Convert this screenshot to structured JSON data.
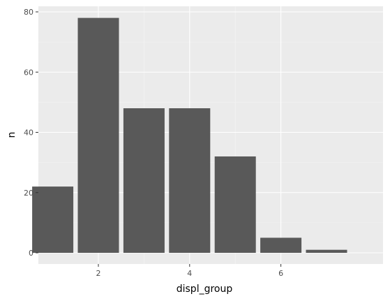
{
  "chart_data": {
    "type": "bar",
    "x": [
      1,
      2,
      3,
      4,
      5,
      6,
      7
    ],
    "values": [
      22,
      78,
      48,
      48,
      32,
      5,
      1
    ],
    "xlabel": "displ_group",
    "ylabel": "n",
    "xlim": [
      0.5,
      7.5
    ],
    "ylim": [
      0,
      80
    ],
    "x_ticks": [
      2,
      4,
      6
    ],
    "y_ticks": [
      0,
      20,
      40,
      60,
      80
    ],
    "grid": true,
    "colors": {
      "bar": "#595959",
      "panel": "#ebebeb",
      "grid_major": "#ffffff",
      "grid_minor": "#f5f5f5",
      "tick_label": "#4d4d4d",
      "axis_title": "#000000"
    }
  }
}
